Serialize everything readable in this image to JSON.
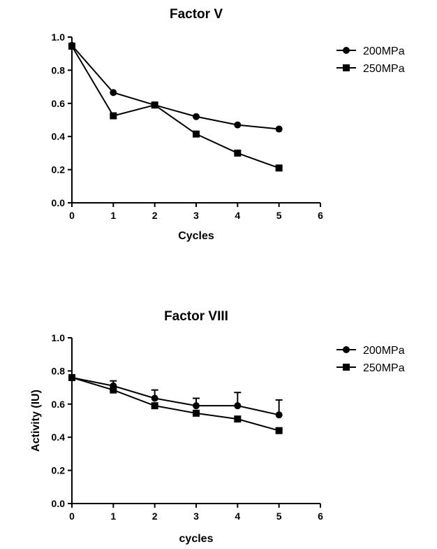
{
  "chart_data": [
    {
      "type": "line",
      "title": "Factor V",
      "xlabel": "Cycles",
      "ylabel": "",
      "xlim": [
        0,
        6
      ],
      "ylim": [
        0,
        1.0
      ],
      "xticks": [
        "0",
        "1",
        "2",
        "3",
        "4",
        "5",
        "6"
      ],
      "yticks": [
        "0.0",
        "0.2",
        "0.4",
        "0.6",
        "0.8",
        "1.0"
      ],
      "legend_position": "top-right",
      "grid": false,
      "series": [
        {
          "name": "200MPa",
          "marker": "circle",
          "x": [
            0,
            1,
            2,
            3,
            4,
            5
          ],
          "y": [
            0.95,
            0.665,
            0.59,
            0.52,
            0.47,
            0.445
          ]
        },
        {
          "name": "250MPa",
          "marker": "square",
          "x": [
            0,
            1,
            2,
            3,
            4,
            5
          ],
          "y": [
            0.945,
            0.525,
            0.59,
            0.415,
            0.3,
            0.21
          ]
        }
      ]
    },
    {
      "type": "line",
      "title": "Factor VIII",
      "xlabel": "cycles",
      "ylabel": "Activity (IU)",
      "xlim": [
        0,
        6
      ],
      "ylim": [
        0,
        1.0
      ],
      "xticks": [
        "0",
        "1",
        "2",
        "3",
        "4",
        "5",
        "6"
      ],
      "yticks": [
        "0.0",
        "0.2",
        "0.4",
        "0.6",
        "0.8",
        "1.0"
      ],
      "legend_position": "top-right",
      "grid": false,
      "series": [
        {
          "name": "200MPa",
          "marker": "circle",
          "x": [
            0,
            1,
            2,
            3,
            4,
            5
          ],
          "y": [
            0.76,
            0.71,
            0.635,
            0.59,
            0.59,
            0.535
          ],
          "error": [
            0,
            0.03,
            0.05,
            0.045,
            0.08,
            0.09
          ]
        },
        {
          "name": "250MPa",
          "marker": "square",
          "x": [
            0,
            1,
            2,
            3,
            4,
            5
          ],
          "y": [
            0.76,
            0.685,
            0.59,
            0.545,
            0.51,
            0.44
          ],
          "error": [
            0,
            0,
            0,
            0,
            0,
            0.01
          ]
        }
      ]
    }
  ]
}
